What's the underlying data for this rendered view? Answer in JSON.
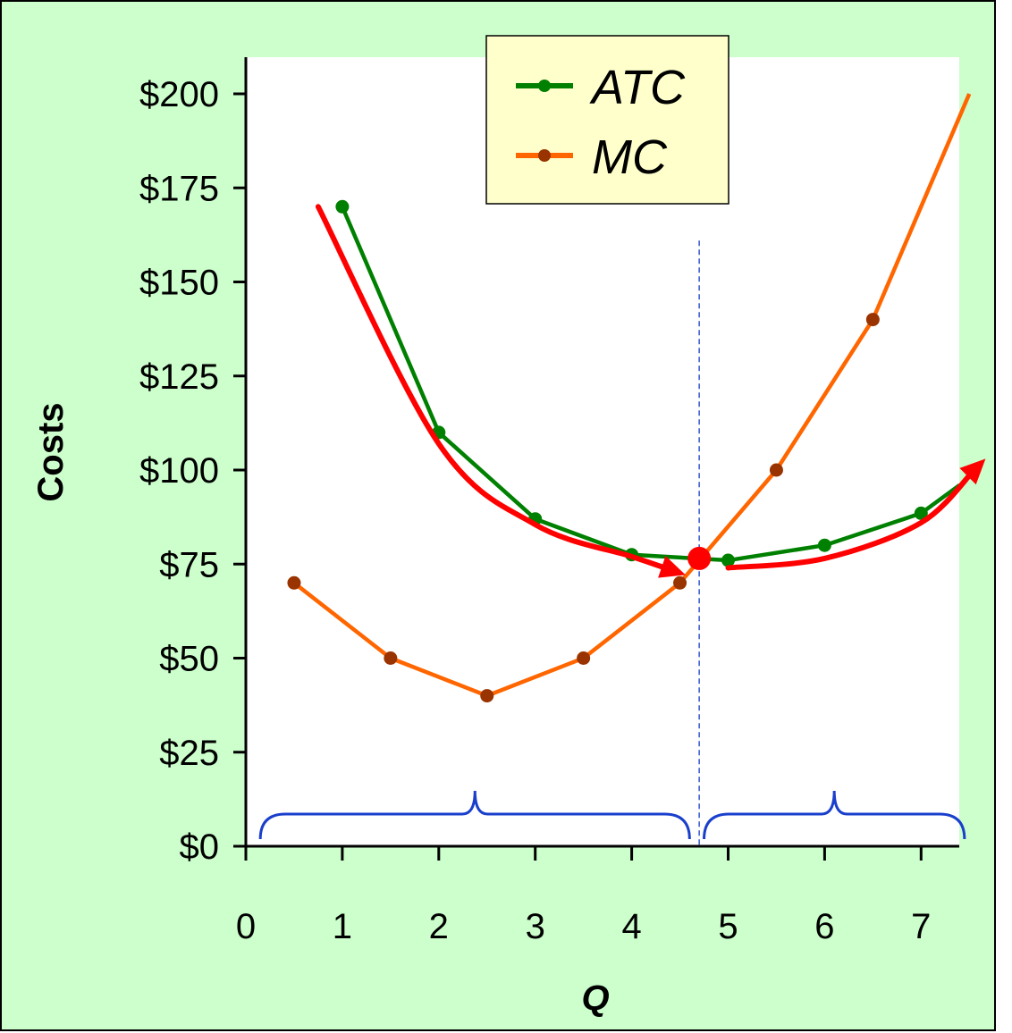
{
  "chart_data": {
    "type": "line",
    "ylabel": "Costs",
    "xlabel": "Q",
    "xlim": [
      0,
      7.4
    ],
    "ylim": [
      0,
      200
    ],
    "x_ticks": [
      0,
      1,
      2,
      3,
      4,
      5,
      6,
      7
    ],
    "y_ticks": [
      0,
      25,
      50,
      75,
      100,
      125,
      150,
      175,
      200
    ],
    "y_tick_labels": [
      "$0",
      "$25",
      "$50",
      "$75",
      "$100",
      "$125",
      "$150",
      "$175",
      "$200"
    ],
    "legend_position": "top-center",
    "series": [
      {
        "name": "ATC",
        "color": "#008000",
        "marker_color": "#008000",
        "points": [
          [
            1,
            170
          ],
          [
            2,
            110
          ],
          [
            3,
            87
          ],
          [
            4,
            77.5
          ],
          [
            5,
            76
          ],
          [
            6,
            80
          ],
          [
            7,
            88.5
          ],
          [
            7.4,
            96
          ]
        ]
      },
      {
        "name": "MC",
        "color": "#ff6600",
        "marker_color": "#993300",
        "points": [
          [
            0.5,
            70
          ],
          [
            1.5,
            50
          ],
          [
            2.5,
            40
          ],
          [
            3.5,
            50
          ],
          [
            4.5,
            70
          ],
          [
            5.5,
            100
          ],
          [
            6.5,
            140
          ],
          [
            7.5,
            200
          ]
        ]
      }
    ],
    "markers_hidden_at_x": [
      7.4,
      7.5
    ],
    "minimum_atc_point": {
      "x": 4.7,
      "y": 76.5,
      "color": "#ff0000"
    },
    "reference_line": {
      "x": 4.7,
      "y_top": 161,
      "color": "#3355cc",
      "style": "dashed"
    },
    "annotation_arrows": [
      {
        "color": "#ff0000",
        "points": [
          [
            0.75,
            170
          ],
          [
            2,
            107
          ],
          [
            3,
            85.5
          ],
          [
            4,
            77
          ],
          [
            4.4,
            73.5
          ]
        ]
      },
      {
        "color": "#ff0000",
        "points": [
          [
            5.0,
            74
          ],
          [
            6,
            76.5
          ],
          [
            7,
            86
          ],
          [
            7.55,
            100
          ]
        ]
      }
    ],
    "braces": [
      {
        "color": "#1a3fcc",
        "from": 0.15,
        "to": 4.6
      },
      {
        "color": "#1a3fcc",
        "from": 4.75,
        "to": 7.45
      }
    ],
    "background": "#ccffcc",
    "plot_background": "#ffffff",
    "legend_background": "#ffffcc"
  }
}
